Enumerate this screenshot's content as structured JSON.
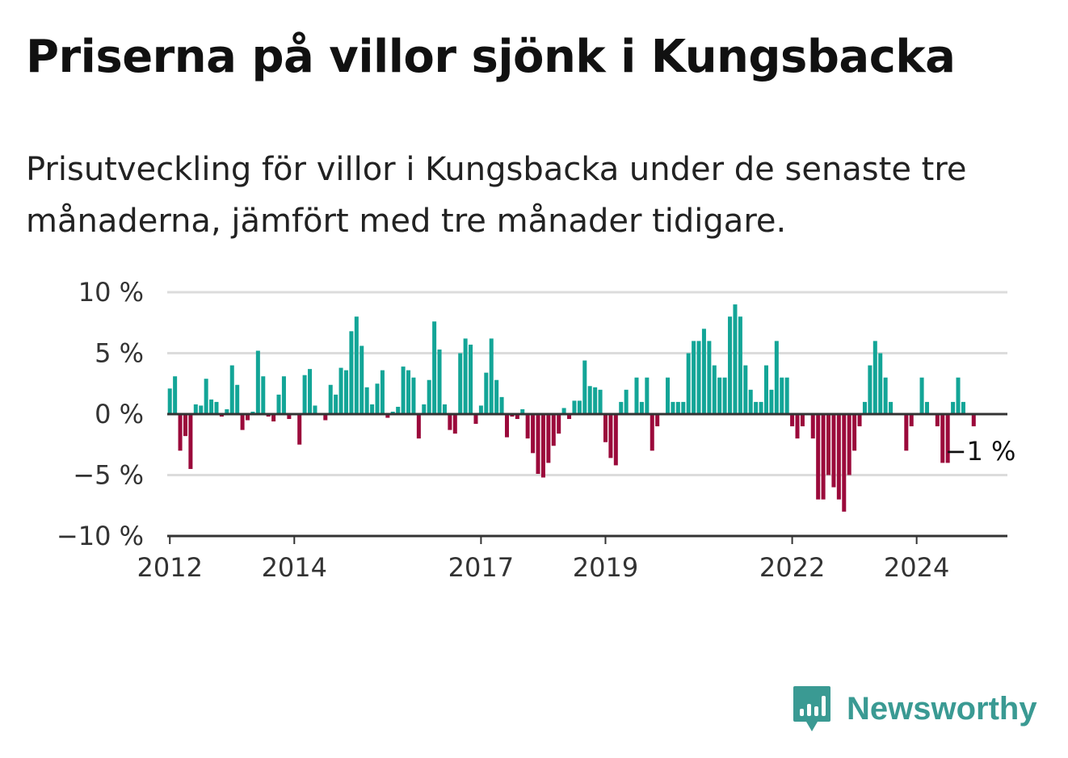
{
  "header": {
    "title": "Priserna på villor sjönk i Kungsbacka",
    "subtitle": "Prisutveckling för villor i Kungsbacka under de senaste tre månaderna, jämfört med tre månader tidigare."
  },
  "branding": {
    "logo_text": "Newsworthy",
    "icon": "bar-chart-speech-bubble-icon",
    "color": "#3a9a93"
  },
  "colors": {
    "positive": "#13a597",
    "negative": "#9b0a3b",
    "gridline": "#dcdcdc",
    "baseline": "#333333"
  },
  "chart_data": {
    "type": "bar",
    "title": "",
    "xlabel": "",
    "ylabel": "",
    "ylim": [
      -10,
      10
    ],
    "xlim": [
      "2012-01",
      "2025-06"
    ],
    "yticks": [
      10,
      5,
      0,
      -5,
      -10
    ],
    "ytick_labels": [
      "10 %",
      "5 %",
      "0 %",
      "−5 %",
      "−10 %"
    ],
    "xticks": [
      "2012-01",
      "2014-01",
      "2017-01",
      "2019-01",
      "2022-01",
      "2024-01"
    ],
    "xtick_labels": [
      "2012",
      "2014",
      "2017",
      "2019",
      "2022",
      "2024"
    ],
    "grid": true,
    "legend": "none",
    "start": "2012-01",
    "series": [
      {
        "values": [
          2.1,
          3.1,
          -3.0,
          -1.8,
          -4.5,
          0.8,
          0.7,
          2.9,
          1.2,
          1.0,
          -0.2,
          0.4,
          4.0,
          2.4,
          -1.3,
          -0.5,
          0.2,
          5.2,
          3.1,
          -0.2,
          -0.6,
          1.6,
          3.1,
          -0.4,
          0.0,
          -2.5,
          3.2,
          3.7,
          0.7,
          0.0,
          -0.5,
          2.4,
          1.6,
          3.8,
          3.6,
          6.8,
          8.0,
          5.6,
          2.2,
          0.8,
          2.5,
          3.6,
          -0.3,
          0.2,
          0.6,
          3.9,
          3.6,
          3.0,
          -2.0,
          0.8,
          2.8,
          7.6,
          5.3,
          0.8,
          -1.3,
          -1.6,
          5.0,
          6.2,
          5.7,
          -0.8,
          0.7,
          3.4,
          6.2,
          2.8,
          1.4,
          -1.9,
          -0.2,
          -0.4,
          0.4,
          -2.0,
          -3.2,
          -4.9,
          -5.2,
          -4.0,
          -2.6,
          -1.6,
          0.5,
          -0.4,
          1.1,
          1.1,
          4.4,
          2.3,
          2.2,
          2.0,
          -2.3,
          -3.6,
          -4.2,
          1.0,
          2.0,
          0.0,
          3.0,
          1.0,
          3.0,
          -3.0,
          -1.0,
          0.0,
          3.0,
          1.0,
          1.0,
          1.0,
          5.0,
          6.0,
          6.0,
          7.0,
          6.0,
          4.0,
          3.0,
          3.0,
          8.0,
          9.0,
          8.0,
          4.0,
          2.0,
          1.0,
          1.0,
          4.0,
          2.0,
          6.0,
          3.0,
          3.0,
          -1.0,
          -2.0,
          -1.0,
          0.0,
          -2.0,
          -7.0,
          -7.0,
          -5.0,
          -6.0,
          -7.0,
          -8.0,
          -5.0,
          -3.0,
          -1.0,
          1.0,
          4.0,
          6.0,
          5.0,
          3.0,
          1.0,
          0.0,
          0.0,
          -3.0,
          -1.0,
          0.0,
          3.0,
          1.0,
          0.0,
          -1.0,
          -4.0,
          -4.0,
          1.0,
          3.0,
          1.0,
          0.0,
          -1.0
        ]
      }
    ],
    "annotations": [
      {
        "x": "2025-01",
        "value": -1,
        "text": "−1 %"
      }
    ]
  }
}
